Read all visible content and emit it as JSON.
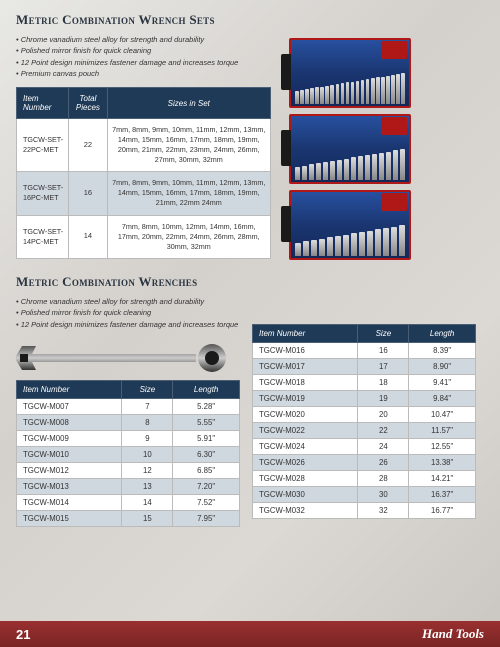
{
  "section1": {
    "title": "Metric Combination Wrench Sets",
    "bullets": [
      "Chrome vanadium steel alloy for strength and durability",
      "Polished mirror finish for quick cleaning",
      "12 Point design minimizes fastener damage and increases torque",
      "Premium canvas pouch"
    ],
    "table": {
      "headers": [
        "Item Number",
        "Total Pieces",
        "Sizes in Set"
      ],
      "rows": [
        {
          "item": "TGCW-SET-22PC-MET",
          "pieces": "22",
          "sizes": "7mm, 8mm, 9mm, 10mm, 11mm, 12mm, 13mm, 14mm, 15mm, 16mm, 17mm, 18mm, 19mm, 20mm, 21mm, 22mm, 23mm, 24mm, 26mm, 27mm, 30mm, 32mm",
          "alt": false
        },
        {
          "item": "TGCW-SET-16PC-MET",
          "pieces": "16",
          "sizes": "7mm, 8mm, 9mm, 10mm, 11mm, 12mm, 13mm, 14mm, 15mm, 16mm, 17mm, 18mm, 19mm, 21mm, 22mm 24mm",
          "alt": true
        },
        {
          "item": "TGCW-SET-14PC-MET",
          "pieces": "14",
          "sizes": "7mm, 8mm, 10mm, 12mm, 14mm, 16mm, 17mm, 20mm, 22mm, 24mm, 26mm, 28mm, 30mm, 32mm",
          "alt": false
        }
      ]
    },
    "pouches": [
      22,
      16,
      14
    ]
  },
  "section2": {
    "title": "Metric Combination Wrenches",
    "bullets": [
      "Chrome vanadium steel alloy for strength and durability",
      "Polished mirror finish for quick cleaning",
      "12 Point design minimizes fastener  damage and increases torque"
    ],
    "headers": [
      "Item Number",
      "Size",
      "Length"
    ],
    "left_rows": [
      {
        "item": "TGCW-M007",
        "size": "7",
        "len": "5.28\"",
        "alt": false
      },
      {
        "item": "TGCW-M008",
        "size": "8",
        "len": "5.55\"",
        "alt": true
      },
      {
        "item": "TGCW-M009",
        "size": "9",
        "len": "5.91\"",
        "alt": false
      },
      {
        "item": "TGCW-M010",
        "size": "10",
        "len": "6.30\"",
        "alt": true
      },
      {
        "item": "TGCW-M012",
        "size": "12",
        "len": "6.85\"",
        "alt": false
      },
      {
        "item": "TGCW-M013",
        "size": "13",
        "len": "7.20\"",
        "alt": true
      },
      {
        "item": "TGCW-M014",
        "size": "14",
        "len": "7.52\"",
        "alt": false
      },
      {
        "item": "TGCW-M015",
        "size": "15",
        "len": "7.95\"",
        "alt": true
      }
    ],
    "right_rows": [
      {
        "item": "TGCW-M016",
        "size": "16",
        "len": "8.39\"",
        "alt": false
      },
      {
        "item": "TGCW-M017",
        "size": "17",
        "len": "8.90\"",
        "alt": true
      },
      {
        "item": "TGCW-M018",
        "size": "18",
        "len": "9.41\"",
        "alt": false
      },
      {
        "item": "TGCW-M019",
        "size": "19",
        "len": "9.84\"",
        "alt": true
      },
      {
        "item": "TGCW-M020",
        "size": "20",
        "len": "10.47\"",
        "alt": false
      },
      {
        "item": "TGCW-M022",
        "size": "22",
        "len": "11.57\"",
        "alt": true
      },
      {
        "item": "TGCW-M024",
        "size": "24",
        "len": "12.55\"",
        "alt": false
      },
      {
        "item": "TGCW-M026",
        "size": "26",
        "len": "13.38\"",
        "alt": true
      },
      {
        "item": "TGCW-M028",
        "size": "28",
        "len": "14.21\"",
        "alt": false
      },
      {
        "item": "TGCW-M030",
        "size": "30",
        "len": "16.37\"",
        "alt": true
      },
      {
        "item": "TGCW-M032",
        "size": "32",
        "len": "16.77\"",
        "alt": false
      }
    ]
  },
  "footer": {
    "page": "21",
    "category": "Hand Tools"
  },
  "colors": {
    "header_bg": "#1e3a56",
    "alt_row": "#d0d8df",
    "footer_bg": "#7a2424"
  }
}
